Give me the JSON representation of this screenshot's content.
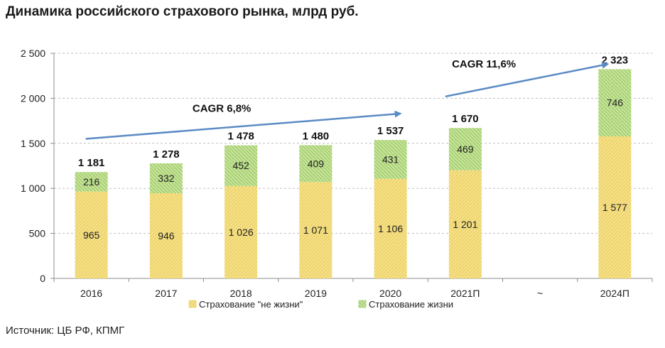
{
  "title": "Динамика российского страхового рынка, млрд руб.",
  "source": "Источник: ЦБ РФ, КПМГ",
  "colors": {
    "non_life": "#f5e08a",
    "non_life_hatch": "#e6c74a",
    "life": "#c6e29a",
    "life_hatch": "#8cc152",
    "grid": "#bfbfbf",
    "axis": "#8c8c8c",
    "arrow": "#5b8bc4"
  },
  "chart_data": {
    "type": "bar",
    "stacked": true,
    "categories": [
      "2016",
      "2017",
      "2018",
      "2019",
      "2020",
      "2021П",
      "~",
      "2024П"
    ],
    "series": [
      {
        "name": "Страхование \"не жизни\"",
        "values": [
          965,
          946,
          1026,
          1071,
          1106,
          1201,
          null,
          1577
        ]
      },
      {
        "name": "Страхование жизни",
        "values": [
          216,
          332,
          452,
          409,
          431,
          469,
          null,
          746
        ]
      }
    ],
    "totals": [
      1181,
      1278,
      1478,
      1480,
      1537,
      1670,
      null,
      2323
    ],
    "value_labels": {
      "non_life": [
        "965",
        "946",
        "1 026",
        "1 071",
        "1 106",
        "1 201",
        "",
        "1 577"
      ],
      "life": [
        "216",
        "332",
        "452",
        "409",
        "431",
        "469",
        "",
        "746"
      ],
      "totals": [
        "1 181",
        "1 278",
        "1 478",
        "1 480",
        "1 537",
        "1 670",
        "",
        "2 323"
      ]
    },
    "yticks": [
      0,
      500,
      1000,
      1500,
      2000,
      2500
    ],
    "ytick_labels": [
      "0",
      "500",
      "1 000",
      "1 500",
      "2 000",
      "2 500"
    ],
    "ylim": [
      0,
      2500
    ],
    "grid": true,
    "legend_position": "bottom",
    "annotations": [
      {
        "text": "CAGR 6,8%",
        "from_category": "2016",
        "to_category": "2020",
        "from_value": 1550,
        "to_value": 1830
      },
      {
        "text": "CAGR 11,6%",
        "from_category": "2021П",
        "to_category": "2024П",
        "from_value": 2020,
        "to_value": 2380
      }
    ]
  }
}
